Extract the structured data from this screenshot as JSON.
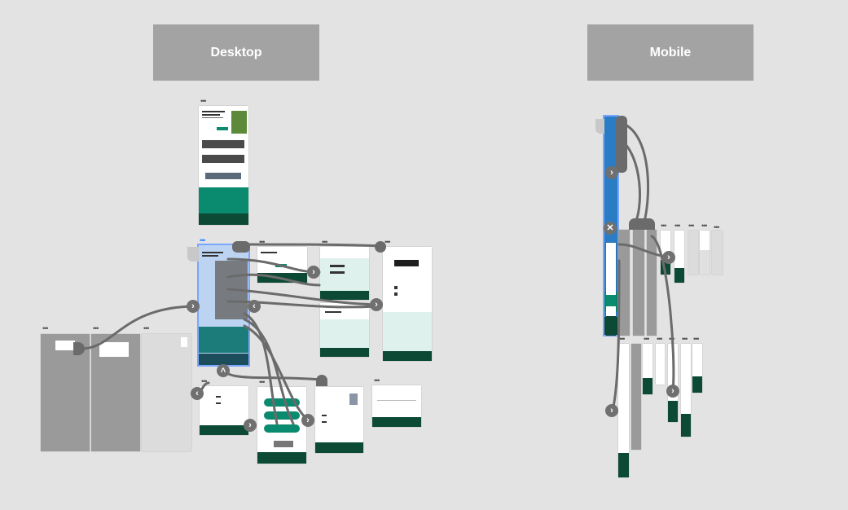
{
  "sections": {
    "desktop_label": "Desktop",
    "mobile_label": "Mobile"
  },
  "artboard_menu_glyph": "•••",
  "nav_glyphs": {
    "next": "›",
    "prev": "‹",
    "up": "˄",
    "close": "✕"
  },
  "colors": {
    "canvas": "#e3e3e3",
    "header_bg": "#a3a3a3",
    "wire": "#6b6b6b",
    "footer_green": "#0d4a35",
    "brand_teal": "#0a8a6e",
    "selection_blue": "#7aa6ff"
  },
  "icons": {
    "next": "chevron-right-icon",
    "prev": "chevron-left-icon",
    "up": "chevron-up-icon",
    "close": "close-icon"
  }
}
